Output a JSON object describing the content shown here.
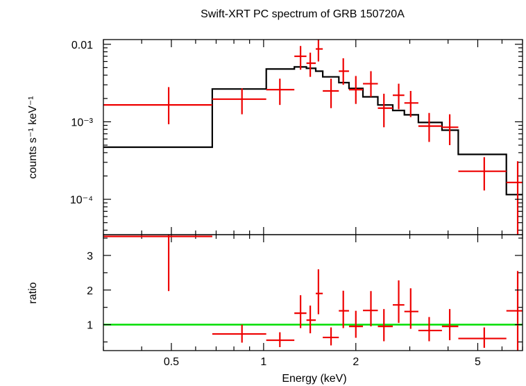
{
  "chart_data": [
    {
      "type": "scatter",
      "title": "Swift-XRT PC spectrum of GRB 150720A",
      "ylabel": "counts s⁻¹ keV⁻¹",
      "xlabel": "Energy (keV)",
      "xscale": "log",
      "yscale": "log",
      "xlim": [
        0.3,
        7.0
      ],
      "ylim": [
        3.5e-05,
        0.0115
      ],
      "yticks": [
        {
          "value": 0.01,
          "label": "0.01"
        },
        {
          "value": 0.001,
          "label": "10⁻³"
        },
        {
          "value": 0.0001,
          "label": "10⁻⁴"
        }
      ],
      "colors": {
        "data": "#ee0000",
        "model": "#000000"
      },
      "data": [
        {
          "x": 0.49,
          "xlo": 0.3,
          "xhi": 0.68,
          "y": 0.00165,
          "ylo": 0.00093,
          "yhi": 0.0028
        },
        {
          "x": 0.85,
          "xlo": 0.68,
          "xhi": 1.02,
          "y": 0.00196,
          "ylo": 0.00125,
          "yhi": 0.0027
        },
        {
          "x": 1.13,
          "xlo": 1.02,
          "xhi": 1.26,
          "y": 0.0026,
          "ylo": 0.00165,
          "yhi": 0.0036
        },
        {
          "x": 1.32,
          "xlo": 1.26,
          "xhi": 1.38,
          "y": 0.007,
          "ylo": 0.0047,
          "yhi": 0.0095
        },
        {
          "x": 1.42,
          "xlo": 1.38,
          "xhi": 1.48,
          "y": 0.0057,
          "ylo": 0.0038,
          "yhi": 0.0078
        },
        {
          "x": 1.51,
          "xlo": 1.48,
          "xhi": 1.56,
          "y": 0.0087,
          "ylo": 0.006,
          "yhi": 0.012
        },
        {
          "x": 1.66,
          "xlo": 1.56,
          "xhi": 1.76,
          "y": 0.0025,
          "ylo": 0.0015,
          "yhi": 0.0036
        },
        {
          "x": 1.82,
          "xlo": 1.76,
          "xhi": 1.9,
          "y": 0.0045,
          "ylo": 0.003,
          "yhi": 0.0066
        },
        {
          "x": 2.0,
          "xlo": 1.9,
          "xhi": 2.11,
          "y": 0.0026,
          "ylo": 0.0017,
          "yhi": 0.0039
        },
        {
          "x": 2.24,
          "xlo": 2.11,
          "xhi": 2.36,
          "y": 0.0031,
          "ylo": 0.0021,
          "yhi": 0.0045
        },
        {
          "x": 2.47,
          "xlo": 2.36,
          "xhi": 2.64,
          "y": 0.0015,
          "ylo": 0.00085,
          "yhi": 0.0023
        },
        {
          "x": 2.76,
          "xlo": 2.64,
          "xhi": 2.88,
          "y": 0.0022,
          "ylo": 0.00145,
          "yhi": 0.0031
        },
        {
          "x": 3.02,
          "xlo": 2.88,
          "xhi": 3.2,
          "y": 0.00175,
          "ylo": 0.00115,
          "yhi": 0.0025
        },
        {
          "x": 3.47,
          "xlo": 3.2,
          "xhi": 3.82,
          "y": 0.00088,
          "ylo": 0.00055,
          "yhi": 0.0013
        },
        {
          "x": 4.05,
          "xlo": 3.82,
          "xhi": 4.32,
          "y": 0.00085,
          "ylo": 0.0005,
          "yhi": 0.00125
        },
        {
          "x": 5.25,
          "xlo": 4.32,
          "xhi": 6.2,
          "y": 0.00023,
          "ylo": 0.00013,
          "yhi": 0.00035
        },
        {
          "x": 6.75,
          "xlo": 6.2,
          "xhi": 7.0,
          "y": 0.000165,
          "ylo": 3.5e-05,
          "yhi": 0.00031
        }
      ],
      "model": [
        {
          "x0": 0.3,
          "x1": 0.68,
          "y": 0.00047
        },
        {
          "x0": 0.68,
          "x1": 1.02,
          "y": 0.00265
        },
        {
          "x0": 1.02,
          "x1": 1.26,
          "y": 0.0048
        },
        {
          "x0": 1.26,
          "x1": 1.38,
          "y": 0.0051
        },
        {
          "x0": 1.38,
          "x1": 1.48,
          "y": 0.0049
        },
        {
          "x0": 1.48,
          "x1": 1.56,
          "y": 0.0045
        },
        {
          "x0": 1.56,
          "x1": 1.76,
          "y": 0.0038
        },
        {
          "x0": 1.76,
          "x1": 1.9,
          "y": 0.0032
        },
        {
          "x0": 1.9,
          "x1": 2.11,
          "y": 0.0027
        },
        {
          "x0": 2.11,
          "x1": 2.36,
          "y": 0.0021
        },
        {
          "x0": 2.36,
          "x1": 2.64,
          "y": 0.00165
        },
        {
          "x0": 2.64,
          "x1": 2.88,
          "y": 0.0014
        },
        {
          "x0": 2.88,
          "x1": 3.2,
          "y": 0.00123
        },
        {
          "x0": 3.2,
          "x1": 3.82,
          "y": 0.00098
        },
        {
          "x0": 3.82,
          "x1": 4.32,
          "y": 0.00078
        },
        {
          "x0": 4.32,
          "x1": 6.2,
          "y": 0.00038
        },
        {
          "x0": 6.2,
          "x1": 7.0,
          "y": 0.000115
        }
      ]
    },
    {
      "type": "scatter",
      "ylabel": "ratio",
      "xlabel": "Energy (keV)",
      "xscale": "log",
      "yscale": "linear",
      "xlim": [
        0.3,
        7.0
      ],
      "ylim": [
        0.25,
        3.6
      ],
      "xticks": [
        {
          "value": 0.5,
          "label": "0.5"
        },
        {
          "value": 1,
          "label": "1"
        },
        {
          "value": 2,
          "label": "2"
        },
        {
          "value": 5,
          "label": "5"
        }
      ],
      "yticks": [
        {
          "value": 1,
          "label": "1"
        },
        {
          "value": 2,
          "label": "2"
        },
        {
          "value": 3,
          "label": "3"
        }
      ],
      "reference_line": {
        "y": 1,
        "color": "#00dd00"
      },
      "colors": {
        "data": "#ee0000"
      },
      "data": [
        {
          "x": 0.49,
          "xlo": 0.3,
          "xhi": 0.68,
          "y": 3.55,
          "ylo": 1.97,
          "yhi": 3.6
        },
        {
          "x": 0.85,
          "xlo": 0.68,
          "xhi": 1.02,
          "y": 0.73,
          "ylo": 0.48,
          "yhi": 1.0
        },
        {
          "x": 1.13,
          "xlo": 1.02,
          "xhi": 1.26,
          "y": 0.55,
          "ylo": 0.35,
          "yhi": 0.78
        },
        {
          "x": 1.32,
          "xlo": 1.26,
          "xhi": 1.38,
          "y": 1.33,
          "ylo": 0.9,
          "yhi": 1.85
        },
        {
          "x": 1.42,
          "xlo": 1.38,
          "xhi": 1.48,
          "y": 1.13,
          "ylo": 0.75,
          "yhi": 1.55
        },
        {
          "x": 1.51,
          "xlo": 1.48,
          "xhi": 1.56,
          "y": 1.9,
          "ylo": 1.3,
          "yhi": 2.6
        },
        {
          "x": 1.66,
          "xlo": 1.56,
          "xhi": 1.76,
          "y": 0.63,
          "ylo": 0.4,
          "yhi": 0.92
        },
        {
          "x": 1.82,
          "xlo": 1.76,
          "xhi": 1.9,
          "y": 1.4,
          "ylo": 0.9,
          "yhi": 1.98
        },
        {
          "x": 2.0,
          "xlo": 1.9,
          "xhi": 2.11,
          "y": 0.95,
          "ylo": 0.62,
          "yhi": 1.4
        },
        {
          "x": 2.24,
          "xlo": 2.11,
          "xhi": 2.36,
          "y": 1.41,
          "ylo": 0.95,
          "yhi": 1.97
        },
        {
          "x": 2.47,
          "xlo": 2.36,
          "xhi": 2.64,
          "y": 0.95,
          "ylo": 0.52,
          "yhi": 1.45
        },
        {
          "x": 2.76,
          "xlo": 2.64,
          "xhi": 2.88,
          "y": 1.57,
          "ylo": 1.05,
          "yhi": 2.28
        },
        {
          "x": 3.02,
          "xlo": 2.88,
          "xhi": 3.2,
          "y": 1.38,
          "ylo": 0.88,
          "yhi": 2.05
        },
        {
          "x": 3.47,
          "xlo": 3.2,
          "xhi": 3.82,
          "y": 0.83,
          "ylo": 0.52,
          "yhi": 1.22
        },
        {
          "x": 4.05,
          "xlo": 3.82,
          "xhi": 4.32,
          "y": 0.95,
          "ylo": 0.55,
          "yhi": 1.45
        },
        {
          "x": 5.25,
          "xlo": 4.32,
          "xhi": 6.2,
          "y": 0.6,
          "ylo": 0.33,
          "yhi": 0.92
        },
        {
          "x": 6.75,
          "xlo": 6.2,
          "xhi": 7.0,
          "y": 1.4,
          "ylo": 0.25,
          "yhi": 2.55
        }
      ]
    }
  ]
}
